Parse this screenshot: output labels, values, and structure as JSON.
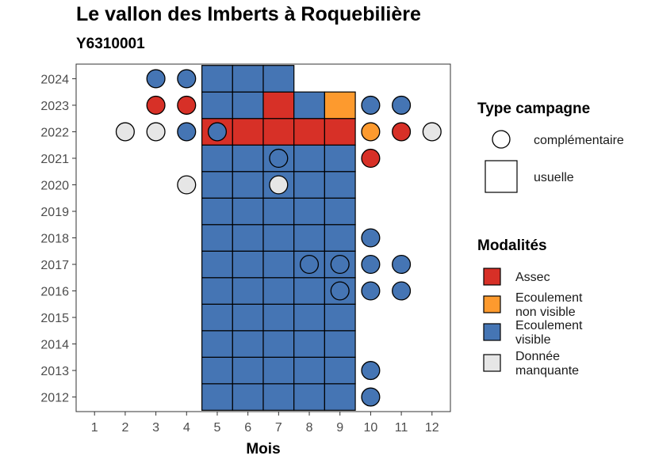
{
  "colors": {
    "asssec": "#d73027",
    "ecoulement_non_visible": "#fd9a2e",
    "ecoulement_visible": "#4575b4",
    "donnee_manquante": "#e6e6e6"
  },
  "chart_data": {
    "type": "heatmap",
    "title": "Le vallon des Imberts à Roquebilière",
    "subtitle": "Y6310001",
    "xlabel": "Mois",
    "ylabel": "",
    "x_categories": [
      "1",
      "2",
      "3",
      "4",
      "5",
      "6",
      "7",
      "8",
      "9",
      "10",
      "11",
      "12"
    ],
    "y_categories": [
      "2012",
      "2013",
      "2014",
      "2015",
      "2016",
      "2017",
      "2018",
      "2019",
      "2020",
      "2021",
      "2022",
      "2023",
      "2024"
    ],
    "grid": false,
    "legend_placement": "right",
    "legends": [
      {
        "title": "Type campagne",
        "entries": [
          {
            "label": "complémentaire",
            "shape": "circle"
          },
          {
            "label": "usuelle",
            "shape": "square"
          }
        ]
      },
      {
        "title": "Modalités",
        "entries": [
          {
            "label": "Assec",
            "key": "A"
          },
          {
            "label": "Ecoulement non visible",
            "lines": [
              "Ecoulement",
              "non visible"
            ],
            "key": "N"
          },
          {
            "label": "Ecoulement visible",
            "lines": [
              "Ecoulement",
              "visible"
            ],
            "key": "V"
          },
          {
            "label": "Donnée manquante",
            "lines": [
              "Donnée",
              "manquante"
            ],
            "key": "M"
          }
        ]
      }
    ],
    "modalite_colors": {
      "A": "#d73027",
      "N": "#fd9a2e",
      "V": "#4575b4",
      "M": "#e6e6e6"
    },
    "usuelle": [
      {
        "year": 2012,
        "months": [
          5,
          6,
          7,
          8,
          9
        ],
        "values": [
          "V",
          "V",
          "V",
          "V",
          "V"
        ]
      },
      {
        "year": 2013,
        "months": [
          5,
          6,
          7,
          8,
          9
        ],
        "values": [
          "V",
          "V",
          "V",
          "V",
          "V"
        ]
      },
      {
        "year": 2014,
        "months": [
          5,
          6,
          7,
          8,
          9
        ],
        "values": [
          "V",
          "V",
          "V",
          "V",
          "V"
        ]
      },
      {
        "year": 2015,
        "months": [
          5,
          6,
          7,
          8,
          9
        ],
        "values": [
          "V",
          "V",
          "V",
          "V",
          "V"
        ]
      },
      {
        "year": 2016,
        "months": [
          5,
          6,
          7,
          8,
          9
        ],
        "values": [
          "V",
          "V",
          "V",
          "V",
          "V"
        ]
      },
      {
        "year": 2017,
        "months": [
          5,
          6,
          7,
          8,
          9
        ],
        "values": [
          "V",
          "V",
          "V",
          "V",
          "V"
        ]
      },
      {
        "year": 2018,
        "months": [
          5,
          6,
          7,
          8,
          9
        ],
        "values": [
          "V",
          "V",
          "V",
          "V",
          "V"
        ]
      },
      {
        "year": 2019,
        "months": [
          5,
          6,
          7,
          8,
          9
        ],
        "values": [
          "V",
          "V",
          "V",
          "V",
          "V"
        ]
      },
      {
        "year": 2020,
        "months": [
          5,
          6,
          7,
          8,
          9
        ],
        "values": [
          "V",
          "V",
          "V",
          "V",
          "V"
        ]
      },
      {
        "year": 2021,
        "months": [
          5,
          6,
          7,
          8,
          9
        ],
        "values": [
          "V",
          "V",
          "V",
          "V",
          "V"
        ]
      },
      {
        "year": 2022,
        "months": [
          5,
          6,
          7,
          8,
          9
        ],
        "values": [
          "A",
          "A",
          "A",
          "A",
          "A"
        ]
      },
      {
        "year": 2023,
        "months": [
          5,
          6,
          7,
          8,
          9
        ],
        "values": [
          "V",
          "V",
          "A",
          "V",
          "N"
        ]
      },
      {
        "year": 2024,
        "months": [
          5,
          6,
          7
        ],
        "values": [
          "V",
          "V",
          "V"
        ]
      }
    ],
    "complementaire": [
      {
        "year": 2024,
        "month": 3,
        "value": "V"
      },
      {
        "year": 2024,
        "month": 4,
        "value": "V"
      },
      {
        "year": 2023,
        "month": 3,
        "value": "A"
      },
      {
        "year": 2023,
        "month": 4,
        "value": "A"
      },
      {
        "year": 2023,
        "month": 10,
        "value": "V"
      },
      {
        "year": 2023,
        "month": 11,
        "value": "V"
      },
      {
        "year": 2022,
        "month": 2,
        "value": "M"
      },
      {
        "year": 2022,
        "month": 3,
        "value": "M"
      },
      {
        "year": 2022,
        "month": 4,
        "value": "V"
      },
      {
        "year": 2022,
        "month": 5,
        "value": "V"
      },
      {
        "year": 2022,
        "month": 10,
        "value": "N"
      },
      {
        "year": 2022,
        "month": 11,
        "value": "A"
      },
      {
        "year": 2022,
        "month": 12,
        "value": "M"
      },
      {
        "year": 2021,
        "month": 7,
        "value": "V"
      },
      {
        "year": 2021,
        "month": 10,
        "value": "A"
      },
      {
        "year": 2020,
        "month": 4,
        "value": "M"
      },
      {
        "year": 2020,
        "month": 7,
        "value": "M"
      },
      {
        "year": 2018,
        "month": 10,
        "value": "V"
      },
      {
        "year": 2017,
        "month": 8,
        "value": "V"
      },
      {
        "year": 2017,
        "month": 9,
        "value": "V"
      },
      {
        "year": 2017,
        "month": 10,
        "value": "V"
      },
      {
        "year": 2017,
        "month": 11,
        "value": "V"
      },
      {
        "year": 2016,
        "month": 9,
        "value": "V"
      },
      {
        "year": 2016,
        "month": 10,
        "value": "V"
      },
      {
        "year": 2016,
        "month": 11,
        "value": "V"
      },
      {
        "year": 2013,
        "month": 10,
        "value": "V"
      },
      {
        "year": 2012,
        "month": 10,
        "value": "V"
      }
    ]
  }
}
